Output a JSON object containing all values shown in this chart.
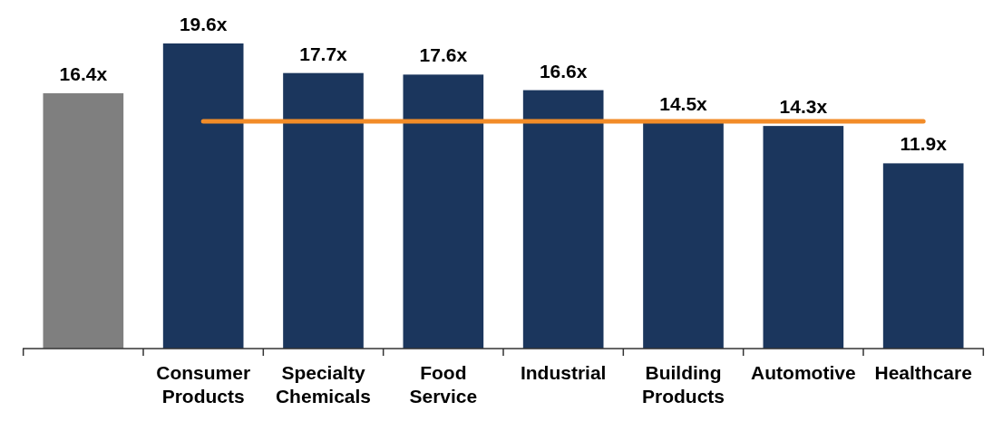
{
  "chart_data": {
    "type": "bar",
    "categories": [
      null,
      "Consumer Products",
      "Specialty Chemicals",
      "Food Service",
      "Industrial",
      "Building Products",
      "Automotive",
      "Healthcare"
    ],
    "series": [
      {
        "colors": [
          "#7f7f7f",
          "#1b365d",
          "#1b365d",
          "#1b365d",
          "#1b365d",
          "#1b365d",
          "#1b365d",
          "#1b365d"
        ],
        "values": [
          16.4,
          19.6,
          17.7,
          17.6,
          16.6,
          14.5,
          14.3,
          11.9
        ],
        "value_labels": [
          "16.4x",
          "19.6x",
          "17.7x",
          "17.6x",
          "16.6x",
          "14.5x",
          "14.3x",
          "11.9x"
        ]
      },
      {
        "type": "line",
        "color": "#f28c28",
        "values": [
          null,
          14.6,
          14.6,
          14.6,
          14.6,
          14.6,
          14.6,
          14.6
        ]
      }
    ],
    "tick_labels": "x"
  }
}
